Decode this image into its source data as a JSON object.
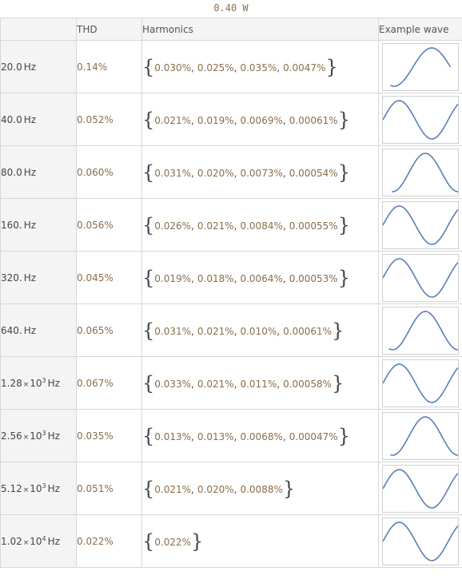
{
  "caption": "0.40 W",
  "headers": {
    "freq": "",
    "thd": "THD",
    "harmonics": "Harmonics",
    "wave": "Example wave"
  },
  "unit": "Hz",
  "wave_color": "#5a7fb5",
  "rows": [
    {
      "mantissa": "20.0",
      "exponent": "",
      "thd": "0.14%",
      "harmonics": [
        "0.030%",
        "0.025%",
        "0.035%",
        "0.0047%"
      ],
      "wave": {
        "phase_cycles": 0.6,
        "cycles": 1.0,
        "x_start": 0.1,
        "x_end": 0.9
      }
    },
    {
      "mantissa": "40.0",
      "exponent": "",
      "thd": "0.052%",
      "harmonics": [
        "0.021%",
        "0.019%",
        "0.0069%",
        "0.00061%"
      ],
      "wave": {
        "phase_cycles": 0.0,
        "cycles": 1.15,
        "x_start": 0.0,
        "x_end": 1.0
      }
    },
    {
      "mantissa": "80.0",
      "exponent": "",
      "thd": "0.060%",
      "harmonics": [
        "0.031%",
        "0.020%",
        "0.0073%",
        "0.00054%"
      ],
      "wave": {
        "phase_cycles": 0.6,
        "cycles": 1.15,
        "x_start": 0.12,
        "x_end": 1.0
      }
    },
    {
      "mantissa": "160.",
      "exponent": "",
      "thd": "0.056%",
      "harmonics": [
        "0.026%",
        "0.021%",
        "0.0084%",
        "0.00055%"
      ],
      "wave": {
        "phase_cycles": 0.0,
        "cycles": 1.15,
        "x_start": 0.0,
        "x_end": 1.0
      }
    },
    {
      "mantissa": "320.",
      "exponent": "",
      "thd": "0.045%",
      "harmonics": [
        "0.019%",
        "0.018%",
        "0.0064%",
        "0.00053%"
      ],
      "wave": {
        "phase_cycles": 0.0,
        "cycles": 1.15,
        "x_start": 0.0,
        "x_end": 1.0
      }
    },
    {
      "mantissa": "640.",
      "exponent": "",
      "thd": "0.065%",
      "harmonics": [
        "0.031%",
        "0.021%",
        "0.010%",
        "0.00061%"
      ],
      "wave": {
        "phase_cycles": 0.6,
        "cycles": 1.15,
        "x_start": 0.08,
        "x_end": 1.0
      }
    },
    {
      "mantissa": "1.28",
      "exponent": "3",
      "thd": "0.067%",
      "harmonics": [
        "0.033%",
        "0.021%",
        "0.011%",
        "0.00058%"
      ],
      "wave": {
        "phase_cycles": 0.0,
        "cycles": 1.15,
        "x_start": 0.0,
        "x_end": 1.0
      }
    },
    {
      "mantissa": "2.56",
      "exponent": "3",
      "thd": "0.035%",
      "harmonics": [
        "0.013%",
        "0.013%",
        "0.0068%",
        "0.00047%"
      ],
      "wave": {
        "phase_cycles": 0.6,
        "cycles": 1.15,
        "x_start": 0.1,
        "x_end": 1.0
      }
    },
    {
      "mantissa": "5.12",
      "exponent": "3",
      "thd": "0.051%",
      "harmonics": [
        "0.021%",
        "0.020%",
        "0.0088%"
      ],
      "wave": {
        "phase_cycles": 0.0,
        "cycles": 1.15,
        "x_start": 0.0,
        "x_end": 1.0
      }
    },
    {
      "mantissa": "1.02",
      "exponent": "4",
      "thd": "0.022%",
      "harmonics": [
        "0.022%"
      ],
      "wave": {
        "phase_cycles": 0.0,
        "cycles": 1.15,
        "x_start": 0.0,
        "x_end": 1.0
      }
    }
  ]
}
